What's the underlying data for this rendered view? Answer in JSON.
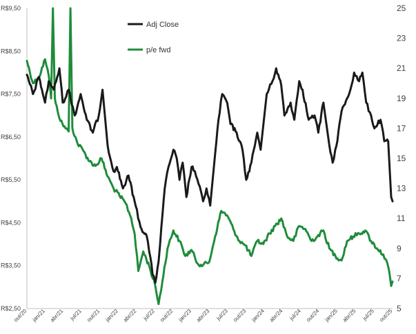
{
  "chart_data": {
    "type": "line",
    "title": "",
    "legend_position": "top-left-inside",
    "grid": false,
    "x_ticks": [
      "out/20",
      "jan/21",
      "abr/21",
      "jul/21",
      "out/21",
      "jan/22",
      "abr/22",
      "jul/22",
      "out/22",
      "jan/23",
      "abr/23",
      "jul/23",
      "out/23",
      "jan/24",
      "abr/24",
      "jul/24",
      "out/24",
      "jan/25",
      "abr/25",
      "jul/25",
      "out/25"
    ],
    "left_axis": {
      "ylim": [
        2.5,
        9.5
      ],
      "ticks": [
        "R$2,50",
        "R$3,50",
        "R$4,50",
        "R$5,50",
        "R$6,50",
        "R$7,50",
        "R$8,50",
        "R$9,50"
      ]
    },
    "right_axis": {
      "ylim": [
        5,
        25
      ],
      "ticks": [
        "5",
        "7",
        "9",
        "11",
        "13",
        "15",
        "17",
        "19",
        "21",
        "23",
        "25"
      ]
    },
    "series": [
      {
        "name": "Adj Close",
        "color": "#1a1a1a",
        "axis": "left",
        "points": [
          [
            "2020-10-01",
            7.95
          ],
          [
            "2020-11-01",
            7.5
          ],
          [
            "2020-12-01",
            7.9
          ],
          [
            "2021-01-01",
            7.3
          ],
          [
            "2021-01-20",
            7.8
          ],
          [
            "2021-02-15",
            7.6
          ],
          [
            "2021-03-15",
            8.1
          ],
          [
            "2021-04-01",
            7.3
          ],
          [
            "2021-05-01",
            7.6
          ],
          [
            "2021-06-01",
            7.0
          ],
          [
            "2021-07-01",
            7.5
          ],
          [
            "2021-08-01",
            6.9
          ],
          [
            "2021-09-01",
            6.6
          ],
          [
            "2021-10-01",
            7.0
          ],
          [
            "2021-10-20",
            7.6
          ],
          [
            "2021-11-15",
            6.3
          ],
          [
            "2021-12-15",
            5.7
          ],
          [
            "2022-01-01",
            5.8
          ],
          [
            "2022-02-01",
            5.3
          ],
          [
            "2022-03-01",
            5.6
          ],
          [
            "2022-04-01",
            5.0
          ],
          [
            "2022-05-01",
            4.4
          ],
          [
            "2022-06-01",
            4.2
          ],
          [
            "2022-06-20",
            3.7
          ],
          [
            "2022-07-01",
            3.3
          ],
          [
            "2022-07-15",
            3.1
          ],
          [
            "2022-08-01",
            3.6
          ],
          [
            "2022-08-15",
            4.4
          ],
          [
            "2022-09-01",
            5.3
          ],
          [
            "2022-09-20",
            5.8
          ],
          [
            "2022-10-15",
            6.2
          ],
          [
            "2022-11-01",
            6.0
          ],
          [
            "2022-11-15",
            5.5
          ],
          [
            "2022-12-01",
            5.9
          ],
          [
            "2022-12-20",
            5.1
          ],
          [
            "2023-01-15",
            5.8
          ],
          [
            "2023-02-01",
            5.7
          ],
          [
            "2023-02-20",
            5.4
          ],
          [
            "2023-03-15",
            5.0
          ],
          [
            "2023-04-01",
            5.3
          ],
          [
            "2023-04-20",
            4.9
          ],
          [
            "2023-05-15",
            6.1
          ],
          [
            "2023-06-01",
            6.9
          ],
          [
            "2023-06-20",
            7.5
          ],
          [
            "2023-07-15",
            7.3
          ],
          [
            "2023-08-01",
            6.8
          ],
          [
            "2023-09-01",
            6.6
          ],
          [
            "2023-10-01",
            6.2
          ],
          [
            "2023-10-20",
            5.5
          ],
          [
            "2023-11-15",
            5.9
          ],
          [
            "2023-12-15",
            6.6
          ],
          [
            "2024-01-01",
            6.2
          ],
          [
            "2024-02-01",
            7.5
          ],
          [
            "2024-03-01",
            7.8
          ],
          [
            "2024-03-20",
            8.1
          ],
          [
            "2024-04-15",
            7.7
          ],
          [
            "2024-05-01",
            7.0
          ],
          [
            "2024-06-01",
            7.3
          ],
          [
            "2024-06-20",
            6.9
          ],
          [
            "2024-07-15",
            7.8
          ],
          [
            "2024-08-01",
            7.6
          ],
          [
            "2024-09-01",
            6.9
          ],
          [
            "2024-10-01",
            7.0
          ],
          [
            "2024-10-20",
            6.6
          ],
          [
            "2024-11-15",
            7.3
          ],
          [
            "2024-12-15",
            6.3
          ],
          [
            "2025-01-01",
            5.9
          ],
          [
            "2025-01-20",
            6.3
          ],
          [
            "2025-02-15",
            7.1
          ],
          [
            "2025-03-15",
            7.4
          ],
          [
            "2025-04-01",
            7.6
          ],
          [
            "2025-04-20",
            8.0
          ],
          [
            "2025-05-15",
            7.8
          ],
          [
            "2025-06-01",
            8.0
          ],
          [
            "2025-06-20",
            7.3
          ],
          [
            "2025-07-15",
            7.0
          ],
          [
            "2025-08-01",
            6.7
          ],
          [
            "2025-09-01",
            6.9
          ],
          [
            "2025-09-20",
            6.4
          ],
          [
            "2025-10-10",
            6.4
          ],
          [
            "2025-10-25",
            5.1
          ],
          [
            "2025-11-01",
            5.0
          ]
        ]
      },
      {
        "name": "p/e fwd",
        "color": "#1e8c3a",
        "axis": "right",
        "points": [
          [
            "2020-10-01",
            21.5
          ],
          [
            "2020-11-01",
            20.0
          ],
          [
            "2020-12-01",
            20.4
          ],
          [
            "2021-01-01",
            21.6
          ],
          [
            "2021-01-20",
            20.5
          ],
          [
            "2021-02-01",
            19.0
          ],
          [
            "2021-02-10",
            25.0
          ],
          [
            "2021-02-20",
            19.0
          ],
          [
            "2021-03-01",
            18.5
          ],
          [
            "2021-03-20",
            17.5
          ],
          [
            "2021-04-15",
            17.0
          ],
          [
            "2021-05-01",
            16.8
          ],
          [
            "2021-05-10",
            25.0
          ],
          [
            "2021-05-20",
            17.0
          ],
          [
            "2021-06-15",
            16.0
          ],
          [
            "2021-07-15",
            15.5
          ],
          [
            "2021-08-15",
            14.8
          ],
          [
            "2021-09-15",
            14.5
          ],
          [
            "2021-10-15",
            15.0
          ],
          [
            "2021-11-15",
            13.8
          ],
          [
            "2021-12-15",
            13.0
          ],
          [
            "2022-01-15",
            12.5
          ],
          [
            "2022-02-15",
            12.0
          ],
          [
            "2022-03-15",
            11.0
          ],
          [
            "2022-04-01",
            10.0
          ],
          [
            "2022-04-20",
            7.5
          ],
          [
            "2022-05-15",
            8.8
          ],
          [
            "2022-06-15",
            7.8
          ],
          [
            "2022-07-15",
            6.5
          ],
          [
            "2022-08-01",
            5.3
          ],
          [
            "2022-08-20",
            6.8
          ],
          [
            "2022-09-15",
            9.0
          ],
          [
            "2022-10-15",
            10.2
          ],
          [
            "2022-11-15",
            9.5
          ],
          [
            "2022-12-15",
            8.5
          ],
          [
            "2023-01-15",
            8.9
          ],
          [
            "2023-02-15",
            8.0
          ],
          [
            "2023-03-15",
            7.9
          ],
          [
            "2023-04-15",
            8.1
          ],
          [
            "2023-05-15",
            9.8
          ],
          [
            "2023-06-15",
            11.5
          ],
          [
            "2023-07-15",
            11.2
          ],
          [
            "2023-08-15",
            10.3
          ],
          [
            "2023-09-15",
            9.5
          ],
          [
            "2023-10-15",
            9.2
          ],
          [
            "2023-11-15",
            8.5
          ],
          [
            "2023-12-15",
            9.5
          ],
          [
            "2024-01-15",
            9.3
          ],
          [
            "2024-02-15",
            10.0
          ],
          [
            "2024-03-15",
            10.5
          ],
          [
            "2024-04-15",
            11.0
          ],
          [
            "2024-05-15",
            9.8
          ],
          [
            "2024-06-15",
            9.5
          ],
          [
            "2024-07-15",
            10.5
          ],
          [
            "2024-08-15",
            10.3
          ],
          [
            "2024-09-15",
            9.5
          ],
          [
            "2024-10-15",
            9.8
          ],
          [
            "2024-11-15",
            10.2
          ],
          [
            "2024-12-15",
            9.0
          ],
          [
            "2025-01-15",
            8.5
          ],
          [
            "2025-02-15",
            8.2
          ],
          [
            "2025-03-15",
            9.5
          ],
          [
            "2025-04-15",
            9.8
          ],
          [
            "2025-05-15",
            10.0
          ],
          [
            "2025-06-15",
            10.2
          ],
          [
            "2025-07-15",
            9.5
          ],
          [
            "2025-08-15",
            9.0
          ],
          [
            "2025-09-15",
            8.6
          ],
          [
            "2025-10-10",
            7.8
          ],
          [
            "2025-10-25",
            6.5
          ],
          [
            "2025-11-01",
            6.8
          ]
        ]
      }
    ]
  }
}
